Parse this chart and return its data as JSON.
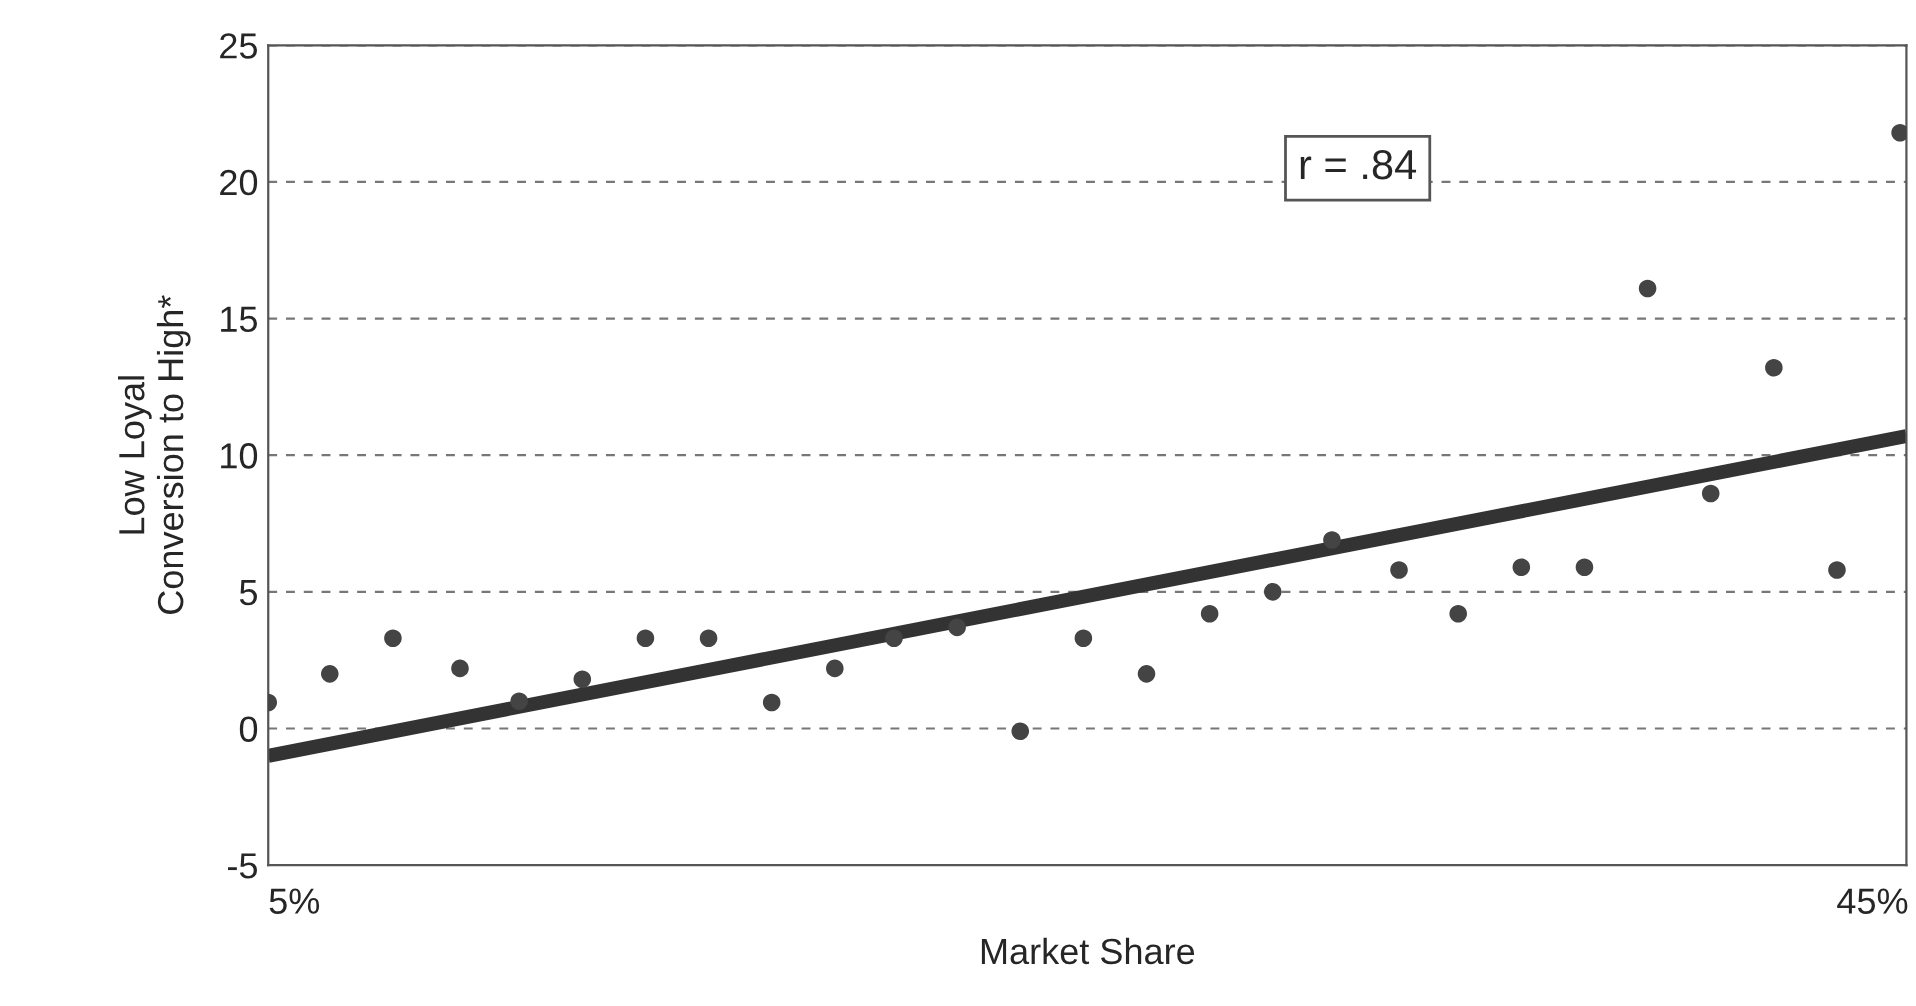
{
  "chart_data": {
    "type": "scatter",
    "xlabel": "Market Share",
    "ylabel": "Low Loyal\nConversion to High*",
    "series": [
      {
        "color": "#444444",
        "marker": "circle",
        "x": [
          4.34,
          5.9,
          7.5,
          9.2,
          10.7,
          12.3,
          13.9,
          15.5,
          17.1,
          18.7,
          20.2,
          21.8,
          23.4,
          25.0,
          26.6,
          28.2,
          29.8,
          31.3,
          33.0,
          34.5,
          36.1,
          37.7,
          39.3,
          40.9,
          42.5,
          44.1,
          45.7
        ],
        "values": [
          0.95,
          2.0,
          3.3,
          2.2,
          1.0,
          1.8,
          3.3,
          3.3,
          0.95,
          2.2,
          3.3,
          3.7,
          -0.1,
          3.3,
          2.0,
          4.2,
          5.0,
          6.9,
          5.8,
          4.2,
          5.9,
          5.9,
          16.1,
          8.6,
          13.2,
          5.8,
          21.8
        ]
      },
      {
        "type": "line",
        "color": "#333333",
        "x": [
          4.34,
          45.86
        ],
        "values": [
          -1.0,
          10.7
        ]
      }
    ],
    "annotations": [
      "r = .84"
    ],
    "xlim": [
      4.34,
      45.86
    ],
    "xticks": [
      {
        "value": 5,
        "label": "5%"
      },
      {
        "value": 45,
        "label": "45%"
      }
    ],
    "ylim": [
      -5,
      25
    ],
    "yticks": [
      -5,
      0,
      5,
      10,
      15,
      20,
      25
    ],
    "grid": "y"
  }
}
